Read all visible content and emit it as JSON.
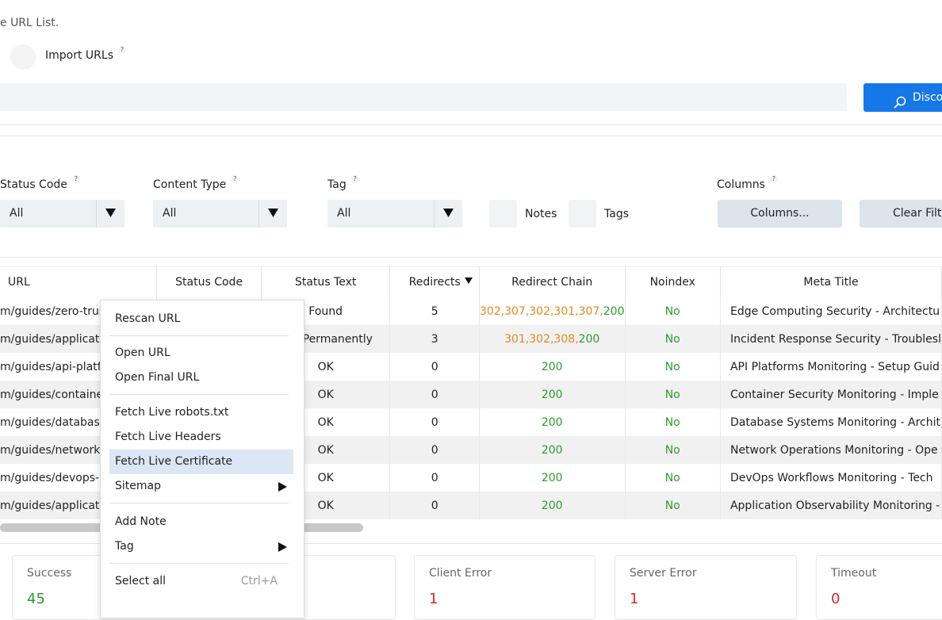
{
  "header": {
    "subtitle": "e URL List.",
    "import_label": "Import URLs",
    "hint": "?",
    "discover_label": "Disco"
  },
  "filters": {
    "status_code": {
      "label": "Status Code",
      "value": "All"
    },
    "content_type": {
      "label": "Content Type",
      "value": "All"
    },
    "tag": {
      "label": "Tag",
      "value": "All"
    },
    "notes_label": "Notes",
    "tags_label": "Tags",
    "columns": {
      "label": "Columns",
      "button": "Columns..."
    },
    "clear_label": "Clear Filte"
  },
  "table": {
    "headers": [
      "URL",
      "Status Code",
      "Status Text",
      "Redirects",
      "Redirect Chain",
      "Noindex",
      "Meta Title"
    ],
    "sort_icon": "sort-desc-icon",
    "rows": [
      {
        "url": "m/guides/zero-trust",
        "status_code": "",
        "status_text": "Found",
        "redirects": "5",
        "chain": [
          {
            "t": "302,",
            "c": "orange"
          },
          {
            "t": "307,",
            "c": "orange"
          },
          {
            "t": "302,",
            "c": "orange"
          },
          {
            "t": "301,",
            "c": "orange"
          },
          {
            "t": "307,",
            "c": "orange"
          },
          {
            "t": "200",
            "c": "green"
          }
        ],
        "noindex": "No",
        "meta_title": "Edge Computing Security - Architectu"
      },
      {
        "url": "m/guides/applicatio",
        "status_code": "",
        "status_text": "ved Permanently",
        "redirects": "3",
        "chain": [
          {
            "t": "301,",
            "c": "orange"
          },
          {
            "t": "302,",
            "c": "orange"
          },
          {
            "t": "308,",
            "c": "orange"
          },
          {
            "t": "200",
            "c": "green"
          }
        ],
        "noindex": "No",
        "meta_title": "Incident Response Security - Troublesl"
      },
      {
        "url": "m/guides/api-platfo",
        "status_code": "",
        "status_text": "OK",
        "redirects": "0",
        "chain": [
          {
            "t": "200",
            "c": "green"
          }
        ],
        "noindex": "No",
        "meta_title": "API Platforms Monitoring - Setup Guid"
      },
      {
        "url": "m/guides/container",
        "status_code": "",
        "status_text": "OK",
        "redirects": "0",
        "chain": [
          {
            "t": "200",
            "c": "green"
          }
        ],
        "noindex": "No",
        "meta_title": "Container Security Monitoring - Imple"
      },
      {
        "url": "m/guides/database-",
        "status_code": "",
        "status_text": "OK",
        "redirects": "0",
        "chain": [
          {
            "t": "200",
            "c": "green"
          }
        ],
        "noindex": "No",
        "meta_title": "Database Systems Monitoring - Archit"
      },
      {
        "url": "m/guides/network-o",
        "status_code": "",
        "status_text": "OK",
        "redirects": "0",
        "chain": [
          {
            "t": "200",
            "c": "green"
          }
        ],
        "noindex": "No",
        "meta_title": "Network Operations Monitoring - Ope"
      },
      {
        "url": "m/guides/devops-w",
        "status_code": "",
        "status_text": "OK",
        "redirects": "0",
        "chain": [
          {
            "t": "200",
            "c": "green"
          }
        ],
        "noindex": "No",
        "meta_title": "DevOps Workflows Monitoring - Tech"
      },
      {
        "url": "m/guides/applicatio",
        "status_code": "",
        "status_text": "OK",
        "redirects": "0",
        "chain": [
          {
            "t": "200",
            "c": "green"
          }
        ],
        "noindex": "No",
        "meta_title": "Application Observability Monitoring -"
      }
    ]
  },
  "context_menu": {
    "rescan": "Rescan URL",
    "open_url": "Open URL",
    "open_final": "Open Final URL",
    "fetch_robots": "Fetch Live robots.txt",
    "fetch_headers": "Fetch Live Headers",
    "fetch_certificate": "Fetch Live Certificate",
    "sitemap": "Sitemap",
    "add_note": "Add Note",
    "tag": "Tag",
    "select_all": "Select all",
    "select_all_shortcut": "Ctrl+A"
  },
  "summary": {
    "success": {
      "label": "Success",
      "value": "45"
    },
    "client_error": {
      "label": "Client Error",
      "value": "1"
    },
    "server_error": {
      "label": "Server Error",
      "value": "1"
    },
    "timeout": {
      "label": "Timeout",
      "value": "0"
    }
  },
  "colors": {
    "accent": "#1677e8",
    "green": "#2a9d2a",
    "orange": "#e08a1e",
    "red": "#d62828",
    "menu_highlight": "#dbe7f5"
  }
}
